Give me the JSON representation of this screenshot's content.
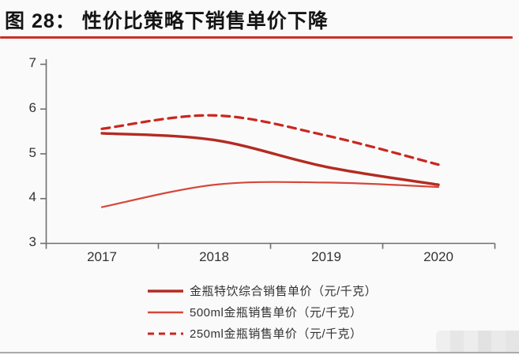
{
  "header": {
    "title": "图 28：  性价比策略下销售单价下降"
  },
  "chart_data": {
    "type": "line",
    "title": "性价比策略下销售单价下降",
    "categories": [
      "2017",
      "2018",
      "2019",
      "2020"
    ],
    "series": [
      {
        "name": "金瓶特饮综合销售单价（元/千克）",
        "values": [
          5.45,
          5.3,
          4.7,
          4.3
        ],
        "color": "#b32b22",
        "dashed": false
      },
      {
        "name": "500ml金瓶销售单价（元/千克）",
        "values": [
          3.8,
          4.3,
          4.35,
          4.25
        ],
        "color": "#d6473a",
        "dashed": false
      },
      {
        "name": "250ml金瓶销售单价（元/千克）",
        "values": [
          5.55,
          5.85,
          5.4,
          4.75
        ],
        "color": "#c9271f",
        "dashed": true
      }
    ],
    "ylim": [
      3,
      7
    ],
    "y_ticks": [
      7,
      6,
      5,
      4,
      3
    ],
    "xlabel": "",
    "ylabel": "",
    "grid": "off",
    "legend_position": "bottom",
    "axis_color": "#6e6e6e",
    "tick_label_color": "#333333"
  }
}
